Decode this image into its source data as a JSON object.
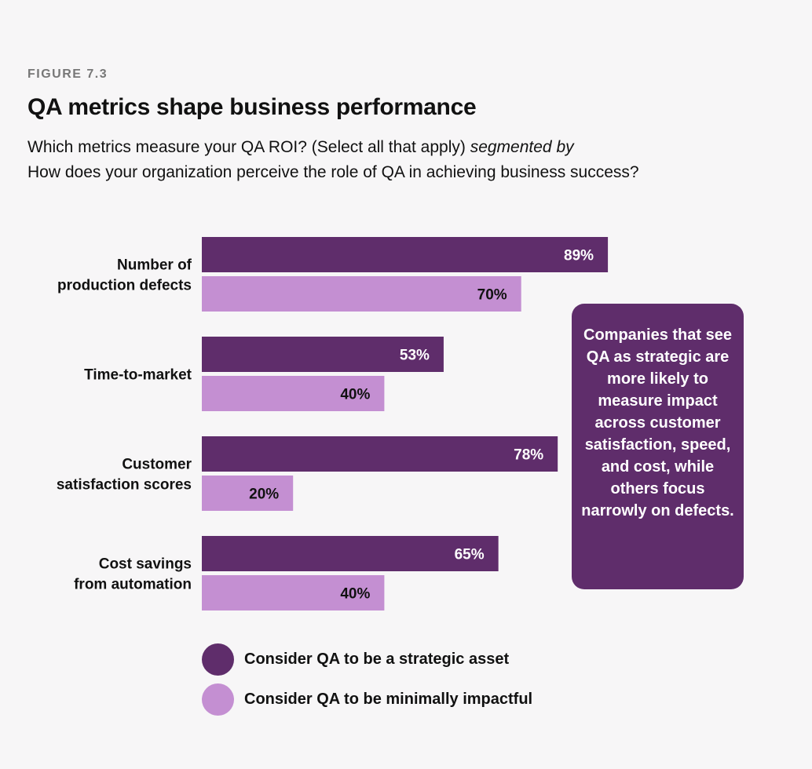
{
  "header": {
    "figure_label": "FIGURE 7.3",
    "title": "QA metrics shape business performance",
    "subtitle_line1_main": "Which metrics measure your QA ROI? (Select all that apply) ",
    "subtitle_line1_italic": "segmented by",
    "subtitle_line2": "How does your organization perceive the role of QA in achieving business success?"
  },
  "callout": {
    "text": "Companies that see QA as strategic are more likely to measure impact across customer satisfaction, speed, and cost, while others focus narrowly on defects."
  },
  "legend": {
    "items": [
      {
        "label": "Consider QA to be a strategic asset",
        "color": "#5f2d6b"
      },
      {
        "label": "Consider QA to be minimally impactful",
        "color": "#c48fd2"
      }
    ]
  },
  "colors": {
    "strategic": "#5f2d6b",
    "minimal": "#c48fd2",
    "callout_bg": "#5f2d6b",
    "value_on_dark": "#ffffff",
    "value_on_light": "#111111"
  },
  "chart_data": {
    "type": "bar",
    "orientation": "horizontal",
    "title": "QA metrics shape business performance",
    "categories": [
      [
        "Number of",
        "production defects"
      ],
      [
        "Time-to-market"
      ],
      [
        "Customer",
        "satisfaction scores"
      ],
      [
        "Cost savings",
        "from automation"
      ]
    ],
    "series": [
      {
        "name": "Consider QA to be a strategic asset",
        "values": [
          89,
          53,
          78,
          65
        ]
      },
      {
        "name": "Consider QA to be minimally impactful",
        "values": [
          70,
          40,
          20,
          40
        ]
      }
    ],
    "value_suffix": "%",
    "xlim": [
      0,
      100
    ],
    "grid": false,
    "legend_position": "bottom"
  }
}
